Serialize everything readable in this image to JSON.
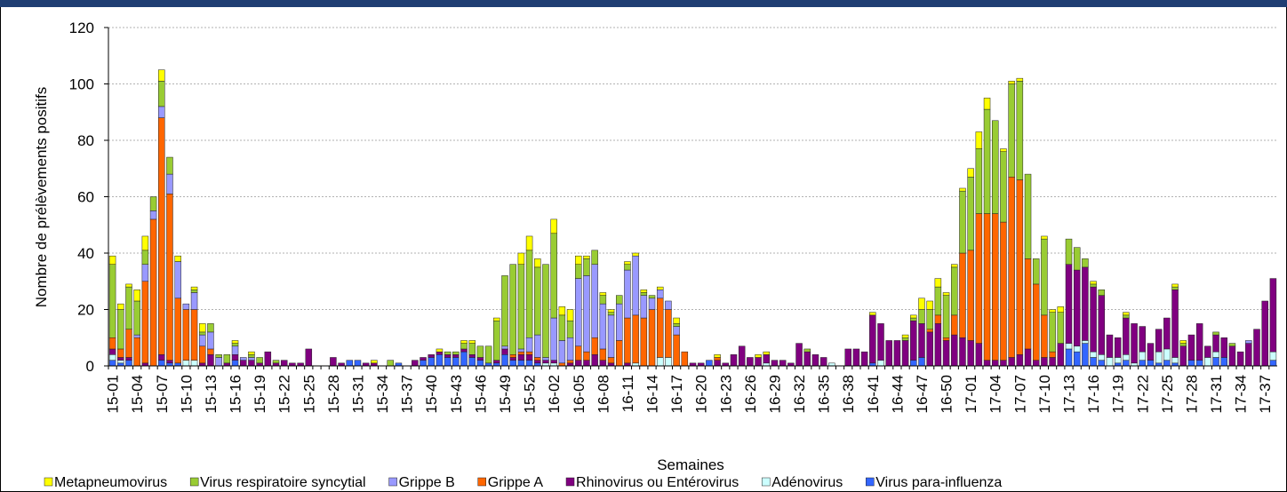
{
  "chart_data": {
    "type": "stacked_bar",
    "y_label": "Nombre de prélèvements positifs",
    "x_label": "Semaines",
    "ylim": [
      0,
      120
    ],
    "yticks": [
      0,
      20,
      40,
      60,
      80,
      100,
      120
    ],
    "grid": true,
    "legend": "bottom",
    "categories": [
      "15-01",
      null,
      null,
      "15-04",
      null,
      null,
      "15-07",
      null,
      null,
      "15-10",
      null,
      null,
      "15-13",
      null,
      null,
      "15-16",
      null,
      null,
      "15-19",
      null,
      null,
      "15-22",
      null,
      null,
      "15-25",
      null,
      null,
      "15-28",
      null,
      null,
      "15-31",
      null,
      null,
      "15-34",
      null,
      null,
      "15-37",
      null,
      null,
      "15-40",
      null,
      null,
      "15-43",
      null,
      null,
      "15-46",
      null,
      null,
      "15-49",
      null,
      null,
      "15-52",
      null,
      null,
      "16-02",
      null,
      null,
      "16-05",
      null,
      null,
      "16-08",
      null,
      null,
      "16-11",
      null,
      null,
      "16-14",
      null,
      null,
      "16-17",
      null,
      null,
      "16-20",
      null,
      null,
      "16-23",
      null,
      null,
      "16-26",
      null,
      null,
      "16-29",
      null,
      null,
      "16-32",
      null,
      null,
      "16-35",
      null,
      null,
      "16-38",
      null,
      null,
      "16-41",
      null,
      null,
      "16-44",
      null,
      null,
      "16-47",
      null,
      null,
      "16-50",
      null,
      null,
      "17-01",
      null,
      null,
      "17-04",
      null,
      null,
      "17-07",
      null,
      null,
      "17-10",
      null,
      null,
      "17-13",
      null,
      null,
      "17-16",
      null,
      null,
      "17-19",
      null,
      null,
      "17-22",
      null,
      null,
      "17-25",
      null,
      null,
      "17-28",
      null,
      null,
      "17-31",
      null,
      null,
      "17-34",
      null,
      null,
      "17-37",
      null
    ],
    "series": [
      {
        "name": "Virus para-influenza",
        "color": "#3366ff",
        "values": [
          2,
          1,
          2,
          0,
          0,
          0,
          2,
          1,
          1,
          0,
          0,
          0,
          0,
          0,
          0,
          2,
          0,
          0,
          0,
          0,
          0,
          0,
          0,
          0,
          0,
          0,
          0,
          0,
          0,
          2,
          2,
          0,
          0,
          0,
          0,
          1,
          0,
          0,
          2,
          3,
          4,
          3,
          3,
          5,
          3,
          2,
          1,
          1,
          4,
          2,
          2,
          2,
          1,
          0,
          0,
          0,
          0,
          0,
          0,
          0,
          0,
          0,
          0,
          0,
          0,
          0,
          0,
          0,
          0,
          0,
          0,
          0,
          0,
          2,
          0,
          0,
          0,
          0,
          0,
          0,
          0,
          0,
          0,
          0,
          0,
          0,
          0,
          0,
          0,
          0,
          0,
          0,
          0,
          1,
          0,
          0,
          0,
          0,
          2,
          3,
          0,
          0,
          0,
          0,
          0,
          0,
          0,
          0,
          0,
          0,
          0,
          0,
          0,
          0,
          0,
          0,
          0,
          6,
          5,
          8,
          3,
          2,
          0,
          1,
          2,
          0,
          2,
          2,
          1,
          2,
          1,
          0,
          2,
          2,
          0,
          3,
          3,
          0,
          0,
          0,
          0,
          0,
          2
        ]
      },
      {
        "name": "Adénovirus",
        "color": "#ccffff",
        "values": [
          2,
          1,
          0,
          0,
          0,
          0,
          0,
          0,
          0,
          2,
          2,
          0,
          0,
          0,
          0,
          0,
          0,
          0,
          0,
          0,
          0,
          0,
          0,
          0,
          0,
          0,
          0,
          0,
          0,
          0,
          0,
          0,
          0,
          0,
          0,
          0,
          0,
          0,
          0,
          0,
          0,
          0,
          0,
          0,
          0,
          0,
          0,
          0,
          0,
          0,
          0,
          0,
          0,
          1,
          1,
          0,
          0,
          0,
          0,
          0,
          0,
          0,
          0,
          0,
          1,
          0,
          0,
          3,
          3,
          0,
          0,
          0,
          0,
          0,
          0,
          0,
          0,
          0,
          0,
          0,
          1,
          0,
          0,
          0,
          0,
          0,
          0,
          0,
          1,
          0,
          0,
          0,
          0,
          0,
          2,
          0,
          0,
          0,
          0,
          0,
          0,
          0,
          0,
          0,
          0,
          0,
          0,
          0,
          0,
          0,
          0,
          0,
          0,
          0,
          0,
          0,
          0,
          2,
          2,
          1,
          2,
          2,
          3,
          2,
          2,
          1,
          3,
          0,
          4,
          4,
          2,
          0,
          0,
          0,
          3,
          2,
          0,
          0,
          0,
          0,
          0,
          0,
          3
        ]
      },
      {
        "name": "Rhinovirus ou Entérovirus",
        "color": "#800080",
        "values": [
          2,
          1,
          1,
          0,
          1,
          0,
          2,
          1,
          0,
          0,
          0,
          1,
          4,
          0,
          1,
          2,
          2,
          2,
          1,
          5,
          1,
          2,
          1,
          1,
          6,
          0,
          0,
          3,
          1,
          0,
          0,
          1,
          1,
          0,
          0,
          0,
          0,
          2,
          1,
          1,
          1,
          1,
          1,
          1,
          1,
          1,
          0,
          1,
          2,
          1,
          2,
          2,
          1,
          1,
          1,
          0,
          1,
          2,
          2,
          4,
          2,
          1,
          0,
          1,
          0,
          0,
          0,
          0,
          0,
          0,
          0,
          1,
          1,
          0,
          2,
          1,
          4,
          7,
          3,
          3,
          3,
          2,
          2,
          1,
          8,
          5,
          4,
          3,
          0,
          0,
          6,
          6,
          5,
          17,
          13,
          9,
          9,
          9,
          14,
          12,
          12,
          15,
          9,
          11,
          10,
          9,
          8,
          2,
          2,
          2,
          3,
          4,
          6,
          2,
          3,
          3,
          8,
          28,
          27,
          26,
          23,
          21,
          8,
          7,
          13,
          14,
          9,
          6,
          8,
          11,
          24,
          7,
          9,
          13,
          4,
          6,
          7,
          7,
          5,
          8,
          13,
          23,
          26
        ]
      },
      {
        "name": "Grippe A",
        "color": "#ff6600",
        "values": [
          4,
          3,
          10,
          10,
          29,
          52,
          84,
          59,
          23,
          18,
          18,
          6,
          2,
          0,
          0,
          0,
          0,
          0,
          0,
          0,
          0,
          0,
          0,
          0,
          0,
          0,
          0,
          0,
          0,
          0,
          0,
          0,
          0,
          0,
          0,
          0,
          0,
          0,
          0,
          0,
          0,
          0,
          0,
          0,
          0,
          0,
          0,
          0,
          0,
          1,
          1,
          1,
          1,
          0,
          0,
          1,
          1,
          5,
          3,
          6,
          4,
          2,
          9,
          16,
          17,
          17,
          20,
          21,
          17,
          11,
          5,
          0,
          0,
          0,
          1,
          0,
          0,
          0,
          0,
          0,
          0,
          0,
          0,
          0,
          0,
          0,
          0,
          0,
          0,
          0,
          0,
          0,
          0,
          0,
          0,
          0,
          0,
          0,
          0,
          0,
          1,
          3,
          1,
          7,
          30,
          32,
          46,
          52,
          52,
          49,
          64,
          62,
          32,
          27,
          15,
          2,
          0,
          0,
          0,
          0,
          0,
          0,
          0,
          0,
          0,
          0,
          0,
          0,
          0,
          0,
          0,
          0,
          0,
          0,
          0,
          0,
          0,
          0,
          0,
          0,
          0,
          0,
          0
        ]
      },
      {
        "name": "Grippe B",
        "color": "#9999ff",
        "values": [
          0,
          0,
          0,
          1,
          6,
          3,
          4,
          7,
          13,
          2,
          6,
          4,
          6,
          3,
          0,
          3,
          1,
          1,
          0,
          0,
          0,
          0,
          0,
          0,
          0,
          0,
          0,
          0,
          0,
          0,
          0,
          0,
          0,
          0,
          0,
          0,
          0,
          0,
          0,
          0,
          0,
          0,
          0,
          0,
          0,
          0,
          0,
          0,
          1,
          0,
          1,
          5,
          8,
          1,
          15,
          8,
          8,
          24,
          27,
          26,
          16,
          15,
          13,
          17,
          21,
          8,
          4,
          3,
          3,
          3,
          0,
          0,
          0,
          0,
          0,
          0,
          0,
          0,
          0,
          0,
          0,
          0,
          0,
          0,
          0,
          0,
          0,
          0,
          0,
          0,
          0,
          0,
          0,
          0,
          0,
          0,
          0,
          0,
          0,
          0,
          0,
          0,
          0,
          0,
          0,
          0,
          0,
          0,
          0,
          0,
          0,
          0,
          0,
          0,
          0,
          0,
          0,
          0,
          0,
          0,
          0,
          0,
          0,
          0,
          0,
          0,
          0,
          0,
          0,
          0,
          0,
          0,
          0,
          0,
          0,
          0,
          0,
          0,
          0,
          1,
          0,
          0,
          0
        ]
      },
      {
        "name": "Virus respiratoire syncytial",
        "color": "#99cc33",
        "values": [
          26,
          14,
          15,
          12,
          5,
          5,
          9,
          6,
          0,
          0,
          1,
          1,
          3,
          1,
          3,
          1,
          0,
          1,
          2,
          0,
          1,
          0,
          0,
          0,
          0,
          0,
          0,
          0,
          0,
          0,
          0,
          0,
          0,
          0,
          2,
          0,
          0,
          0,
          0,
          0,
          0,
          1,
          1,
          2,
          4,
          4,
          6,
          14,
          25,
          32,
          30,
          31,
          24,
          33,
          30,
          9,
          6,
          5,
          6,
          5,
          3,
          1,
          3,
          2,
          0,
          1,
          1,
          0,
          0,
          1,
          0,
          0,
          0,
          0,
          0,
          0,
          0,
          0,
          0,
          0,
          0,
          0,
          0,
          0,
          0,
          1,
          0,
          0,
          0,
          0,
          0,
          0,
          0,
          0,
          0,
          0,
          0,
          1,
          1,
          5,
          7,
          10,
          15,
          17,
          22,
          26,
          23,
          37,
          33,
          25,
          33,
          35,
          30,
          9,
          27,
          14,
          11,
          9,
          8,
          3,
          1,
          2,
          0,
          0,
          1,
          0,
          0,
          0,
          0,
          0,
          1,
          1,
          0,
          0,
          0,
          1,
          0,
          1,
          0,
          0,
          0,
          0,
          0
        ]
      },
      {
        "name": "Metapneumovirus",
        "color": "#ffff00",
        "values": [
          3,
          2,
          1,
          4,
          5,
          0,
          4,
          0,
          2,
          0,
          1,
          3,
          0,
          0,
          0,
          1,
          0,
          1,
          0,
          0,
          0,
          0,
          0,
          0,
          0,
          0,
          0,
          0,
          0,
          0,
          0,
          0,
          1,
          0,
          0,
          0,
          0,
          0,
          0,
          0,
          1,
          0,
          0,
          1,
          1,
          0,
          0,
          1,
          0,
          0,
          4,
          5,
          3,
          0,
          5,
          3,
          4,
          3,
          1,
          0,
          1,
          1,
          0,
          1,
          1,
          1,
          0,
          1,
          0,
          2,
          0,
          0,
          0,
          0,
          1,
          0,
          0,
          0,
          0,
          1,
          1,
          0,
          0,
          0,
          0,
          0,
          0,
          0,
          0,
          0,
          0,
          0,
          0,
          1,
          0,
          0,
          0,
          1,
          1,
          4,
          3,
          3,
          1,
          1,
          1,
          3,
          6,
          4,
          0,
          1,
          1,
          1,
          0,
          0,
          1,
          1,
          2,
          0,
          0,
          0,
          1,
          0,
          0,
          0,
          1,
          0,
          0,
          0,
          0,
          0,
          1,
          1,
          0,
          0,
          0,
          0,
          0,
          0,
          0,
          0,
          0,
          0,
          0
        ]
      }
    ]
  }
}
